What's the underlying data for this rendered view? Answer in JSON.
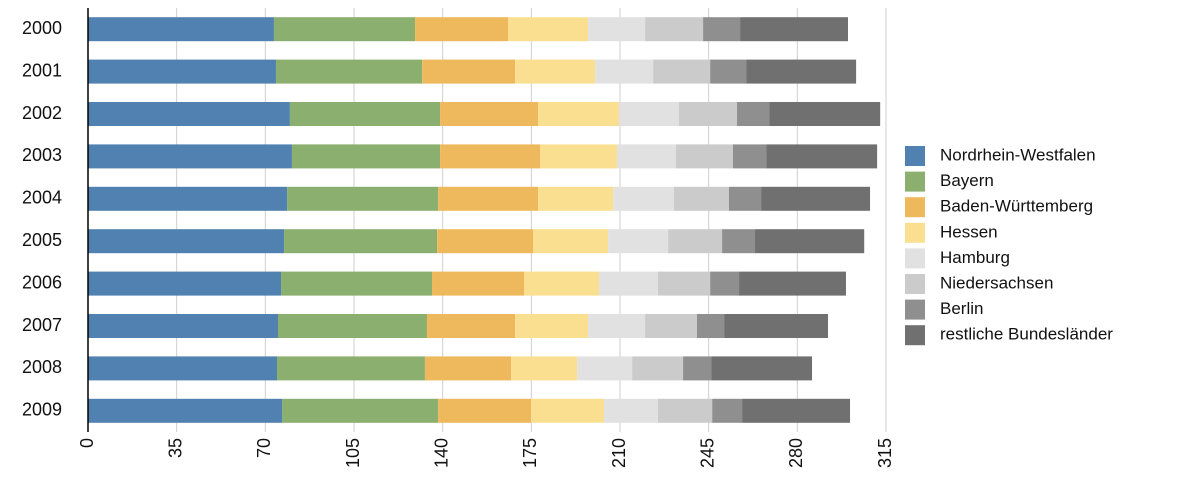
{
  "chart_data": {
    "type": "stacked-bar-horizontal",
    "categories": [
      "2000",
      "2001",
      "2002",
      "2003",
      "2004",
      "2005",
      "2006",
      "2007",
      "2008",
      "2009"
    ],
    "series": [
      {
        "name": "Nordrhein-Westfalen",
        "color": "#5181b1",
        "values": [
          73.4,
          74.2,
          79.7,
          80.5,
          78.6,
          77.4,
          76.2,
          75.0,
          74.6,
          76.6
        ]
      },
      {
        "name": "Bayern",
        "color": "#8aaf6e",
        "values": [
          55.7,
          57.7,
          59.3,
          58.5,
          59.6,
          60.4,
          59.6,
          58.8,
          58.4,
          61.6
        ]
      },
      {
        "name": "Baden-Württemberg",
        "color": "#eeb85d",
        "values": [
          36.7,
          36.7,
          38.7,
          39.5,
          39.5,
          37.9,
          36.3,
          34.8,
          34.0,
          36.7
        ]
      },
      {
        "name": "Hessen",
        "color": "#f9df8f",
        "values": [
          31.6,
          31.6,
          31.9,
          30.3,
          29.6,
          29.6,
          29.6,
          28.8,
          26.1,
          28.8
        ]
      },
      {
        "name": "Hamburg",
        "color": "#e1e1e1",
        "values": [
          22.5,
          22.9,
          23.7,
          23.3,
          24.0,
          23.7,
          23.3,
          22.5,
          21.7,
          21.3
        ]
      },
      {
        "name": "Niedersachsen",
        "color": "#cbcbcb",
        "values": [
          22.9,
          22.5,
          22.9,
          22.5,
          21.7,
          21.3,
          20.6,
          20.5,
          20.1,
          21.4
        ]
      },
      {
        "name": "Berlin",
        "color": "#8f8f8f",
        "values": [
          14.6,
          14.2,
          12.7,
          13.1,
          12.7,
          13.0,
          11.4,
          10.7,
          11.1,
          11.8
        ]
      },
      {
        "name": "restliche Bundesländer",
        "color": "#707070",
        "values": [
          42.6,
          43.4,
          43.8,
          43.8,
          43.0,
          43.1,
          42.2,
          41.0,
          39.8,
          42.6
        ]
      }
    ],
    "xlim": [
      0,
      315
    ],
    "xticks": [
      0,
      35,
      70,
      105,
      140,
      175,
      210,
      245,
      280,
      315
    ],
    "grid": true,
    "legend": "right"
  }
}
